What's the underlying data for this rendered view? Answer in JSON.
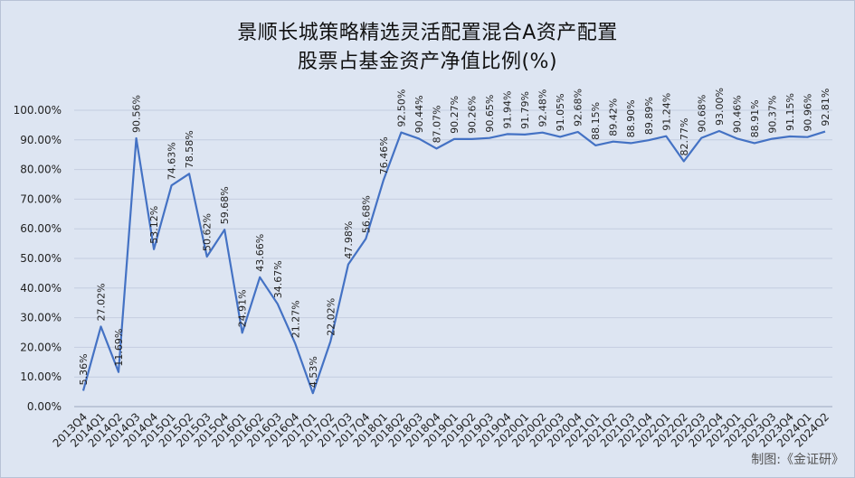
{
  "title_line1": "景顺长城策略精选灵活配置混合A资产配置",
  "title_line2": "股票占基金资产净值比例(%)",
  "credit": "制图:《金证研》",
  "chart_data": {
    "type": "line",
    "ylim": [
      0,
      100
    ],
    "y_ticks": [
      "0.00%",
      "10.00%",
      "20.00%",
      "30.00%",
      "40.00%",
      "50.00%",
      "60.00%",
      "70.00%",
      "80.00%",
      "90.00%",
      "100.00%"
    ],
    "grid": true,
    "line_color": "#4472c4",
    "x": [
      "2013Q4",
      "2014Q1",
      "2014Q2",
      "2014Q3",
      "2014Q4",
      "2015Q1",
      "2015Q2",
      "2015Q3",
      "2015Q4",
      "2016Q1",
      "2016Q2",
      "2016Q3",
      "2016Q4",
      "2017Q1",
      "2017Q2",
      "2017Q3",
      "2017Q4",
      "2018Q1",
      "2018Q2",
      "2018Q3",
      "2018Q4",
      "2019Q1",
      "2019Q2",
      "2019Q3",
      "2019Q4",
      "2020Q1",
      "2020Q2",
      "2020Q3",
      "2020Q4",
      "2021Q1",
      "2021Q2",
      "2021Q3",
      "2021Q4",
      "2022Q1",
      "2022Q2",
      "2022Q3",
      "2022Q4",
      "2023Q1",
      "2023Q2",
      "2023Q3",
      "2023Q4",
      "2024Q1",
      "2024Q2"
    ],
    "values": [
      5.36,
      27.02,
      11.69,
      90.56,
      53.12,
      74.63,
      78.58,
      50.62,
      59.68,
      24.91,
      43.66,
      34.67,
      21.27,
      4.53,
      22.02,
      47.98,
      56.68,
      76.46,
      92.5,
      90.44,
      87.07,
      90.27,
      90.26,
      90.65,
      91.94,
      91.79,
      92.48,
      91.05,
      92.68,
      88.15,
      89.42,
      88.9,
      89.89,
      91.24,
      82.77,
      90.68,
      93.0,
      90.46,
      88.91,
      90.37,
      91.15,
      90.96,
      92.81
    ],
    "data_labels": [
      "5.36%",
      "27.02%",
      "11.69%",
      "90.56%",
      "53.12%",
      "74.63%",
      "78.58%",
      "50.62%",
      "59.68%",
      "24.91%",
      "43.66%",
      "34.67%",
      "21.27%",
      "4.53%",
      "22.02%",
      "47.98%",
      "56.68%",
      "76.46%",
      "92.50%",
      "90.44%",
      "87.07%",
      "90.27%",
      "90.26%",
      "90.65%",
      "91.94%",
      "91.79%",
      "92.48%",
      "91.05%",
      "92.68%",
      "88.15%",
      "89.42%",
      "88.90%",
      "89.89%",
      "91.24%",
      "82.77%",
      "90.68%",
      "93.00%",
      "90.46%",
      "88.91%",
      "90.37%",
      "91.15%",
      "90.96%",
      "92.81%"
    ]
  }
}
